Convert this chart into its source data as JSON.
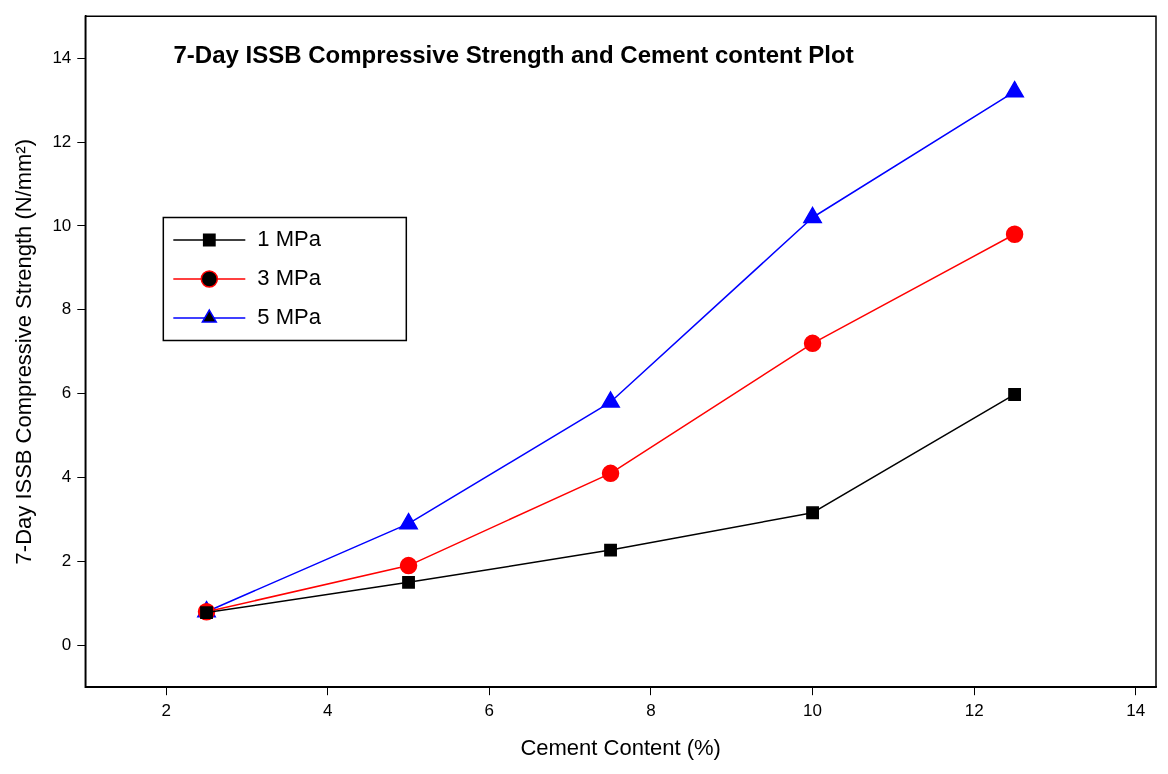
{
  "chart_data": {
    "type": "line",
    "title": "7-Day ISSB Compressive Strength and Cement content Plot",
    "xlabel": "Cement Content (%)",
    "ylabel": "7-Day ISSB Compressive Strength (N/mm²)",
    "x": [
      2.5,
      5,
      7.5,
      10,
      12.5
    ],
    "series": [
      {
        "name": "1 MPa",
        "color": "#000000",
        "marker": "square",
        "values": [
          0.78,
          1.5,
          2.27,
          3.16,
          5.98
        ]
      },
      {
        "name": "3 MPa",
        "color": "#ff0000",
        "marker": "circle",
        "values": [
          0.8,
          1.9,
          4.1,
          7.2,
          9.8
        ]
      },
      {
        "name": "5 MPa",
        "color": "#0000ff",
        "marker": "triangle",
        "values": [
          0.8,
          2.9,
          5.8,
          10.2,
          13.2
        ]
      }
    ],
    "xlim": [
      1,
      14.25
    ],
    "xticks": [
      2,
      4,
      6,
      8,
      10,
      12,
      14
    ],
    "ylim": [
      -1,
      15
    ],
    "yticks": [
      0,
      2,
      4,
      6,
      8,
      10,
      12,
      14
    ],
    "grid": false,
    "legend": "left",
    "line_style": "solid"
  }
}
